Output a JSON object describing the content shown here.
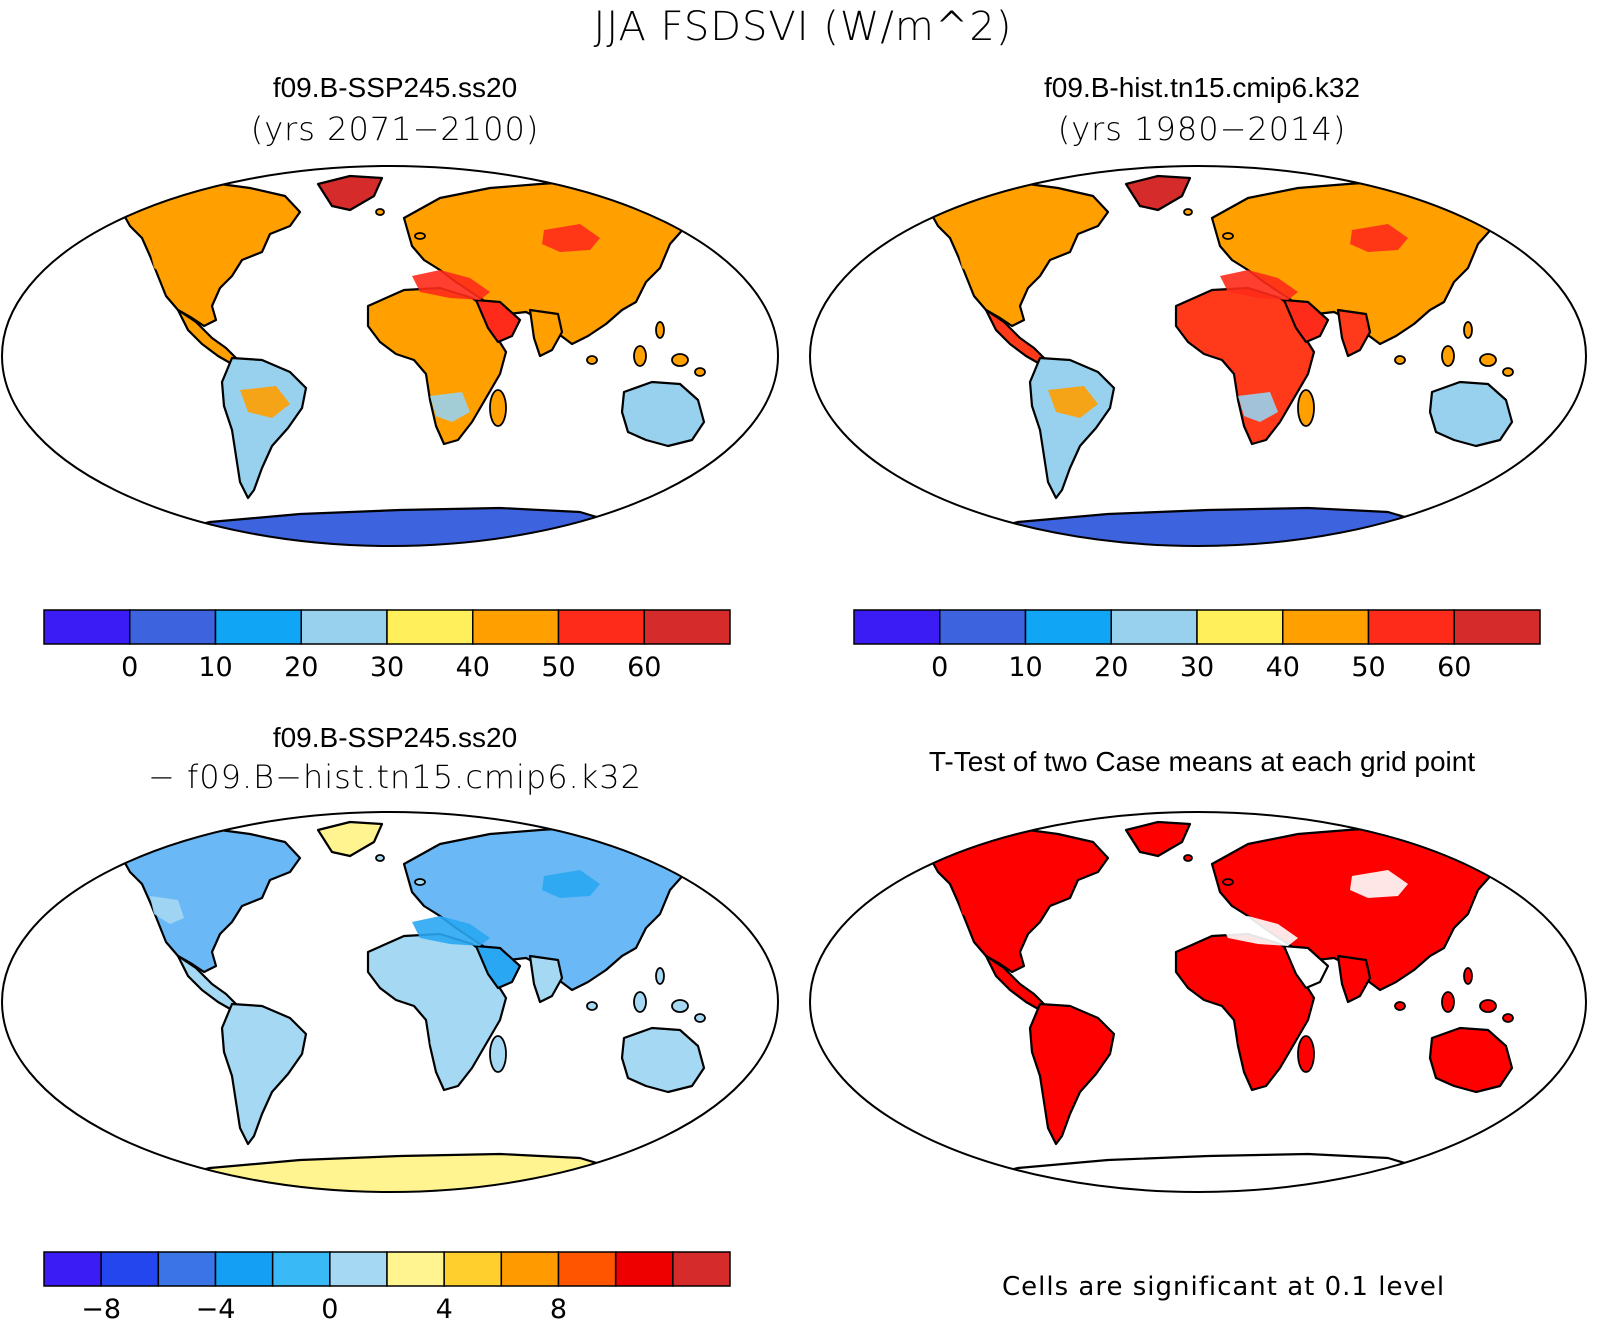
{
  "figure_title": "JJA FSDSVI (W/m^2)",
  "panels": [
    {
      "id": "ssp245",
      "title": "f09.B-SSP245.ss20",
      "subtitle": "(yrs 2071−2100)",
      "colors": {
        "ocean": "#ffffff",
        "land": "#ff9f00",
        "north": "#ff9f00",
        "tropic": "#ff9f00",
        "south": "#98d1ee",
        "antarctica": "#3d63df",
        "greenland": "#d62b2b",
        "accent": "#ff2b1a"
      }
    },
    {
      "id": "hist",
      "title": "f09.B-hist.tn15.cmip6.k32",
      "subtitle": "(yrs 1980−2014)",
      "colors": {
        "ocean": "#ffffff",
        "land": "#ff9f00",
        "north": "#ff9f00",
        "tropic": "#ff3a1a",
        "south": "#98d1ee",
        "antarctica": "#3d63df",
        "greenland": "#d62b2b",
        "accent": "#ff2b1a"
      }
    },
    {
      "id": "diff",
      "title": "f09.B-SSP245.ss20",
      "subtitle": "− f09.B−hist.tn15.cmip6.k32",
      "colors": {
        "ocean": "#ffffff",
        "land": "#a5d8f2",
        "north": "#6ab8f5",
        "tropic": "#a5d8f2",
        "south": "#a5d8f2",
        "antarctica": "#fff48f",
        "greenland": "#fff48f",
        "accent": "#2aa7f3"
      }
    },
    {
      "id": "ttest",
      "title": "T-Test of two Case means at each grid point",
      "subtitle": "",
      "colors": {
        "ocean": "#ffffff",
        "land": "#ff0000",
        "north": "#ff0000",
        "tropic": "#ff0000",
        "south": "#ff0000",
        "antarctica": "#ffffff",
        "greenland": "#ff0000",
        "accent": "#ffffff"
      }
    }
  ],
  "colorbars": [
    {
      "id": "abs-1",
      "colors": [
        "#3b1cf5",
        "#3d63df",
        "#11a6f5",
        "#98d1ee",
        "#ffef5a",
        "#ff9f00",
        "#ff2b1a",
        "#d62b2b"
      ],
      "labels": [
        "0",
        "10",
        "20",
        "30",
        "40",
        "50",
        "60"
      ]
    },
    {
      "id": "abs-2",
      "colors": [
        "#3b1cf5",
        "#3d63df",
        "#11a6f5",
        "#98d1ee",
        "#ffef5a",
        "#ff9f00",
        "#ff2b1a",
        "#d62b2b"
      ],
      "labels": [
        "0",
        "10",
        "20",
        "30",
        "40",
        "50",
        "60"
      ]
    },
    {
      "id": "diff",
      "colors": [
        "#3b1cf5",
        "#2446ee",
        "#3a74e7",
        "#159ff4",
        "#3ab9f7",
        "#a5d8f2",
        "#fff48f",
        "#ffcf2e",
        "#ff9a00",
        "#ff5500",
        "#ee0000",
        "#d62b2b"
      ],
      "labels": [
        "−8",
        "−4",
        "0",
        "4",
        "8"
      ]
    }
  ],
  "significance_note": "Cells are significant at 0.1 level"
}
